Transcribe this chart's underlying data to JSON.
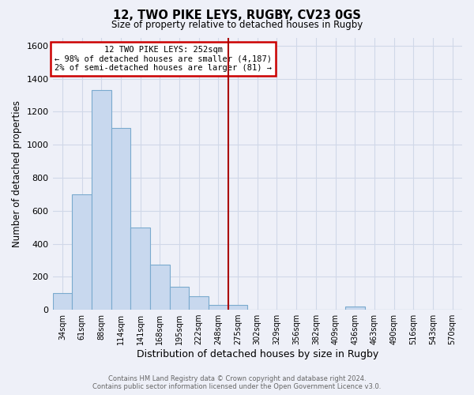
{
  "title": "12, TWO PIKE LEYS, RUGBY, CV23 0GS",
  "subtitle": "Size of property relative to detached houses in Rugby",
  "xlabel": "Distribution of detached houses by size in Rugby",
  "ylabel": "Number of detached properties",
  "bar_color": "#c8d8ee",
  "bar_edge_color": "#7aaace",
  "bin_labels": [
    "34sqm",
    "61sqm",
    "88sqm",
    "114sqm",
    "141sqm",
    "168sqm",
    "195sqm",
    "222sqm",
    "248sqm",
    "275sqm",
    "302sqm",
    "329sqm",
    "356sqm",
    "382sqm",
    "409sqm",
    "436sqm",
    "463sqm",
    "490sqm",
    "516sqm",
    "543sqm",
    "570sqm"
  ],
  "bar_heights": [
    100,
    700,
    1330,
    1100,
    500,
    275,
    140,
    80,
    30,
    30,
    0,
    0,
    0,
    0,
    0,
    20,
    0,
    0,
    0,
    0,
    0
  ],
  "ylim": [
    0,
    1650
  ],
  "yticks": [
    0,
    200,
    400,
    600,
    800,
    1000,
    1200,
    1400,
    1600
  ],
  "vline_index": 8,
  "vline_color": "#aa0000",
  "annotation_title": "12 TWO PIKE LEYS: 252sqm",
  "annotation_line1": "← 98% of detached houses are smaller (4,187)",
  "annotation_line2": "2% of semi-detached houses are larger (81) →",
  "annotation_box_color": "#ffffff",
  "annotation_box_edge": "#cc0000",
  "footer_line1": "Contains HM Land Registry data © Crown copyright and database right 2024.",
  "footer_line2": "Contains public sector information licensed under the Open Government Licence v3.0.",
  "background_color": "#eef0f8",
  "grid_color": "#d0d8e8"
}
